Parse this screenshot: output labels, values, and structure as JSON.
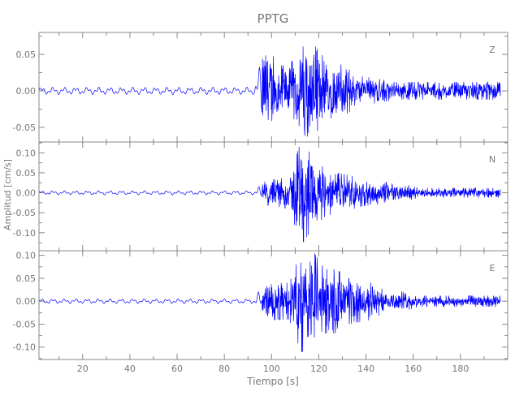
{
  "chart_data": {
    "type": "line",
    "title": "PPTG",
    "xlabel": "Tiempo [s]",
    "ylabel": "Amplitud [cm/s]",
    "xlim": [
      1.5,
      200
    ],
    "x_ticks": [
      20,
      40,
      60,
      80,
      100,
      120,
      140,
      160,
      180
    ],
    "grid": false,
    "line_color": "#0000ff",
    "axis_color": "#888888",
    "envelope_bin_seconds": 5,
    "panels": [
      {
        "channel": "Z",
        "ylim": [
          -0.07,
          0.08
        ],
        "y_ticks": [
          -0.05,
          0.0,
          0.05
        ],
        "y_tick_labels": [
          "-0.05",
          "0.00",
          "0.05"
        ],
        "amplitude_envelope": [
          0.005,
          0.005,
          0.005,
          0.005,
          0.005,
          0.005,
          0.005,
          0.005,
          0.005,
          0.005,
          0.005,
          0.005,
          0.005,
          0.005,
          0.005,
          0.005,
          0.005,
          0.005,
          0.005,
          0.07,
          0.035,
          0.035,
          0.06,
          0.065,
          0.045,
          0.04,
          0.03,
          0.02,
          0.018,
          0.015,
          0.012,
          0.012,
          0.012,
          0.012,
          0.012,
          0.012,
          0.012,
          0.012,
          0.012,
          0.012
        ]
      },
      {
        "channel": "N",
        "ylim": [
          -0.145,
          0.127
        ],
        "y_ticks": [
          -0.1,
          -0.05,
          0.0,
          0.05,
          0.1
        ],
        "y_tick_labels": [
          "-0.10",
          "-0.05",
          "0.00",
          "0.05",
          "0.10"
        ],
        "amplitude_envelope": [
          0.005,
          0.005,
          0.005,
          0.005,
          0.005,
          0.005,
          0.005,
          0.005,
          0.005,
          0.005,
          0.005,
          0.005,
          0.005,
          0.005,
          0.005,
          0.005,
          0.005,
          0.005,
          0.005,
          0.03,
          0.035,
          0.04,
          0.13,
          0.09,
          0.06,
          0.05,
          0.045,
          0.035,
          0.03,
          0.03,
          0.02,
          0.02,
          0.012,
          0.012,
          0.012,
          0.012,
          0.012,
          0.012,
          0.012,
          0.012
        ]
      },
      {
        "channel": "E",
        "ylim": [
          -0.127,
          0.11
        ],
        "y_ticks": [
          -0.1,
          -0.05,
          0.0,
          0.05,
          0.1
        ],
        "y_tick_labels": [
          "-0.10",
          "-0.05",
          "0.00",
          "0.05",
          "0.10"
        ],
        "amplitude_envelope": [
          0.005,
          0.005,
          0.005,
          0.005,
          0.005,
          0.005,
          0.005,
          0.005,
          0.005,
          0.005,
          0.005,
          0.005,
          0.005,
          0.005,
          0.005,
          0.005,
          0.005,
          0.005,
          0.005,
          0.045,
          0.04,
          0.04,
          0.11,
          0.11,
          0.07,
          0.07,
          0.05,
          0.045,
          0.04,
          0.025,
          0.022,
          0.02,
          0.012,
          0.012,
          0.012,
          0.012,
          0.012,
          0.012,
          0.012,
          0.012
        ]
      }
    ]
  }
}
